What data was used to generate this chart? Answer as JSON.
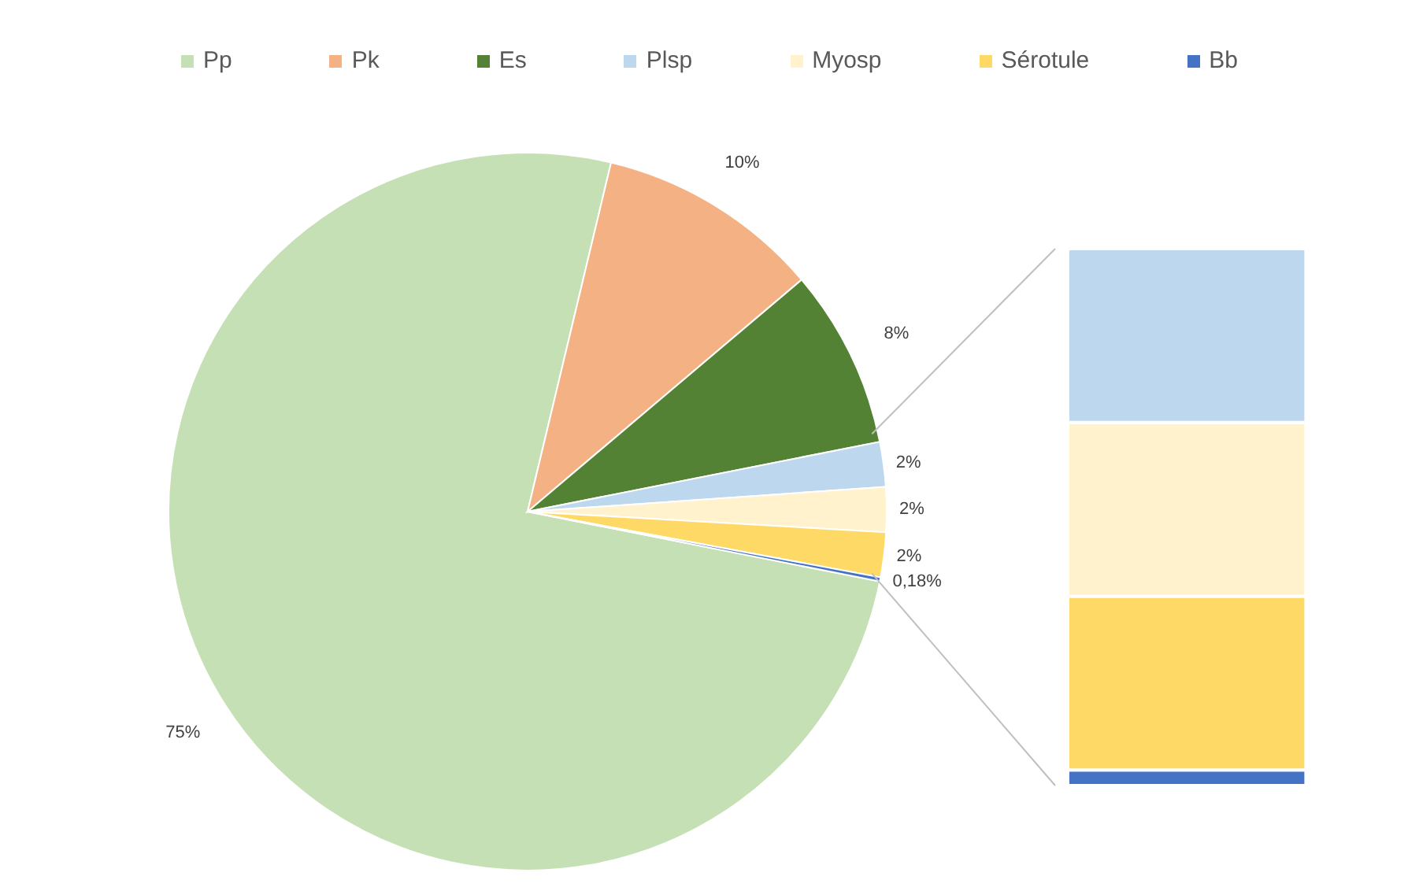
{
  "chart_data": {
    "type": "pie",
    "categories": [
      "Pp",
      "Pk",
      "Es",
      "Plsp",
      "Myosp",
      "Sérotule",
      "Bb"
    ],
    "values": [
      75,
      10,
      8,
      2,
      2,
      2,
      0.18
    ],
    "colors": [
      "#c5e0b4",
      "#f4b183",
      "#548235",
      "#bdd7ee",
      "#fff2cc",
      "#ffd966",
      "#4472c4"
    ],
    "value_labels": [
      "75%",
      "10%",
      "8%",
      "2%",
      "2%",
      "2%",
      "0,18%"
    ],
    "legend": "top"
  }
}
